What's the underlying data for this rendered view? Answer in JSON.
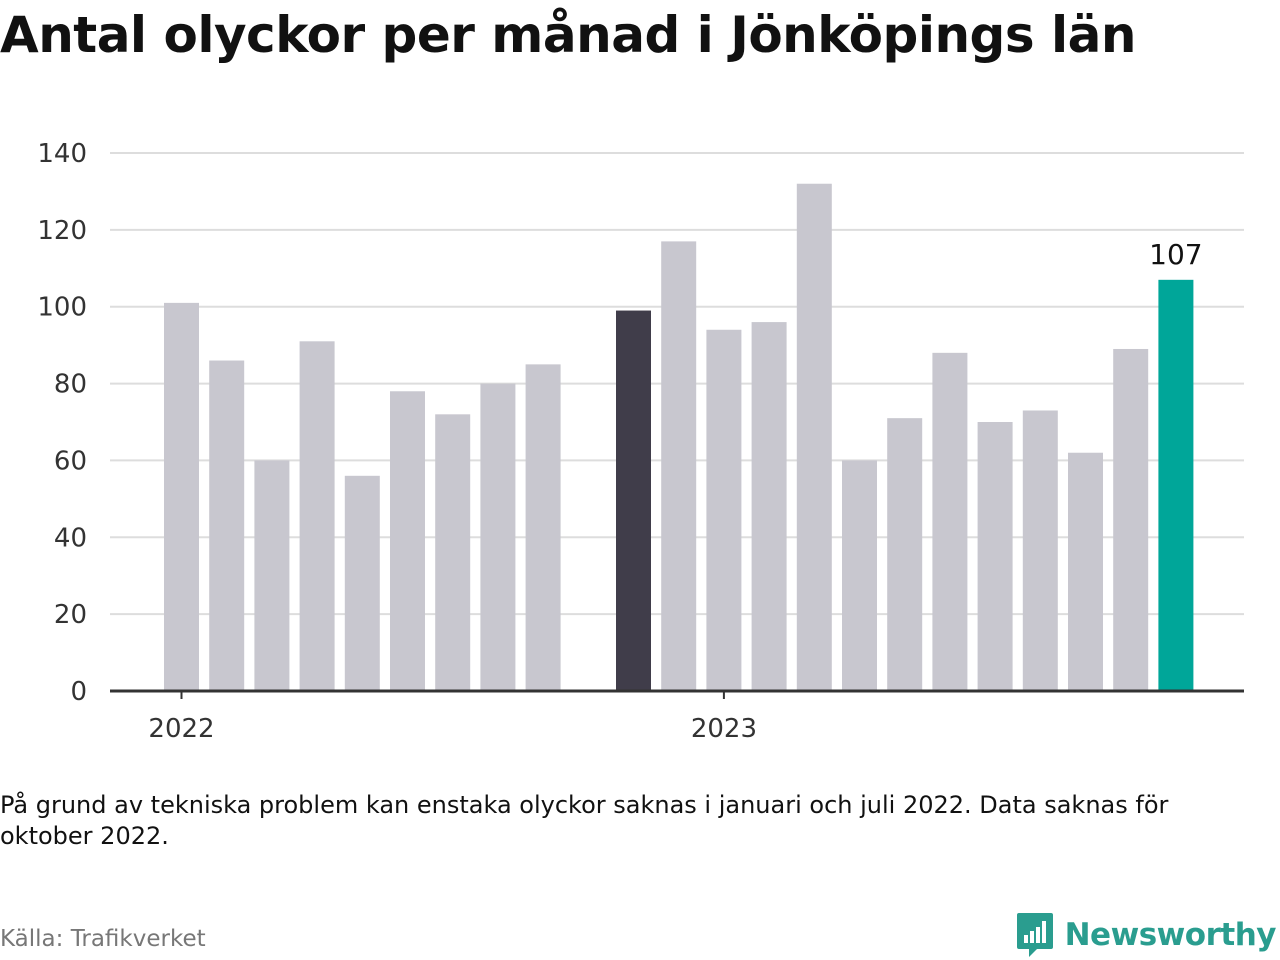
{
  "title": "Antal olyckor per månad i Jönköpings län",
  "note": "På grund av tekniska problem kan enstaka olyckor saknas i januari och juli 2022. Data saknas för oktober 2022.",
  "source": "Källa: Trafikverket",
  "brand": {
    "name": "Newsworthy",
    "icon": "newsworthy-logo-icon"
  },
  "colors": {
    "default": "#c8c7cf",
    "highlight": "#403d4a",
    "latest": "#00a699",
    "grid": "#dddddd",
    "axis": "#333333"
  },
  "chart_data": {
    "type": "bar",
    "ylim": [
      0,
      140
    ],
    "yticks": [
      0,
      20,
      40,
      60,
      80,
      100,
      120,
      140
    ],
    "grid": true,
    "xticks": [
      {
        "label": "2022",
        "index": 0
      },
      {
        "label": "2023",
        "index": 12
      }
    ],
    "bars": [
      {
        "month": "2022-01",
        "value": 101,
        "style": "default"
      },
      {
        "month": "2022-02",
        "value": 86,
        "style": "default"
      },
      {
        "month": "2022-03",
        "value": 60,
        "style": "default"
      },
      {
        "month": "2022-04",
        "value": 91,
        "style": "default"
      },
      {
        "month": "2022-05",
        "value": 56,
        "style": "default"
      },
      {
        "month": "2022-06",
        "value": 78,
        "style": "default"
      },
      {
        "month": "2022-07",
        "value": 72,
        "style": "default"
      },
      {
        "month": "2022-08",
        "value": 80,
        "style": "default"
      },
      {
        "month": "2022-09",
        "value": 85,
        "style": "default"
      },
      {
        "month": "2022-10",
        "value": null,
        "style": "default"
      },
      {
        "month": "2022-11",
        "value": 99,
        "style": "highlight"
      },
      {
        "month": "2022-12",
        "value": 117,
        "style": "default"
      },
      {
        "month": "2023-01",
        "value": 94,
        "style": "default"
      },
      {
        "month": "2023-02",
        "value": 96,
        "style": "default"
      },
      {
        "month": "2023-03",
        "value": 132,
        "style": "default"
      },
      {
        "month": "2023-04",
        "value": 60,
        "style": "default"
      },
      {
        "month": "2023-05",
        "value": 71,
        "style": "default"
      },
      {
        "month": "2023-06",
        "value": 88,
        "style": "default"
      },
      {
        "month": "2023-07",
        "value": 70,
        "style": "default"
      },
      {
        "month": "2023-08",
        "value": 73,
        "style": "default"
      },
      {
        "month": "2023-09",
        "value": 62,
        "style": "default"
      },
      {
        "month": "2023-10",
        "value": 89,
        "style": "default"
      },
      {
        "month": "2023-11",
        "value": 107,
        "style": "latest",
        "label": "107"
      }
    ]
  }
}
